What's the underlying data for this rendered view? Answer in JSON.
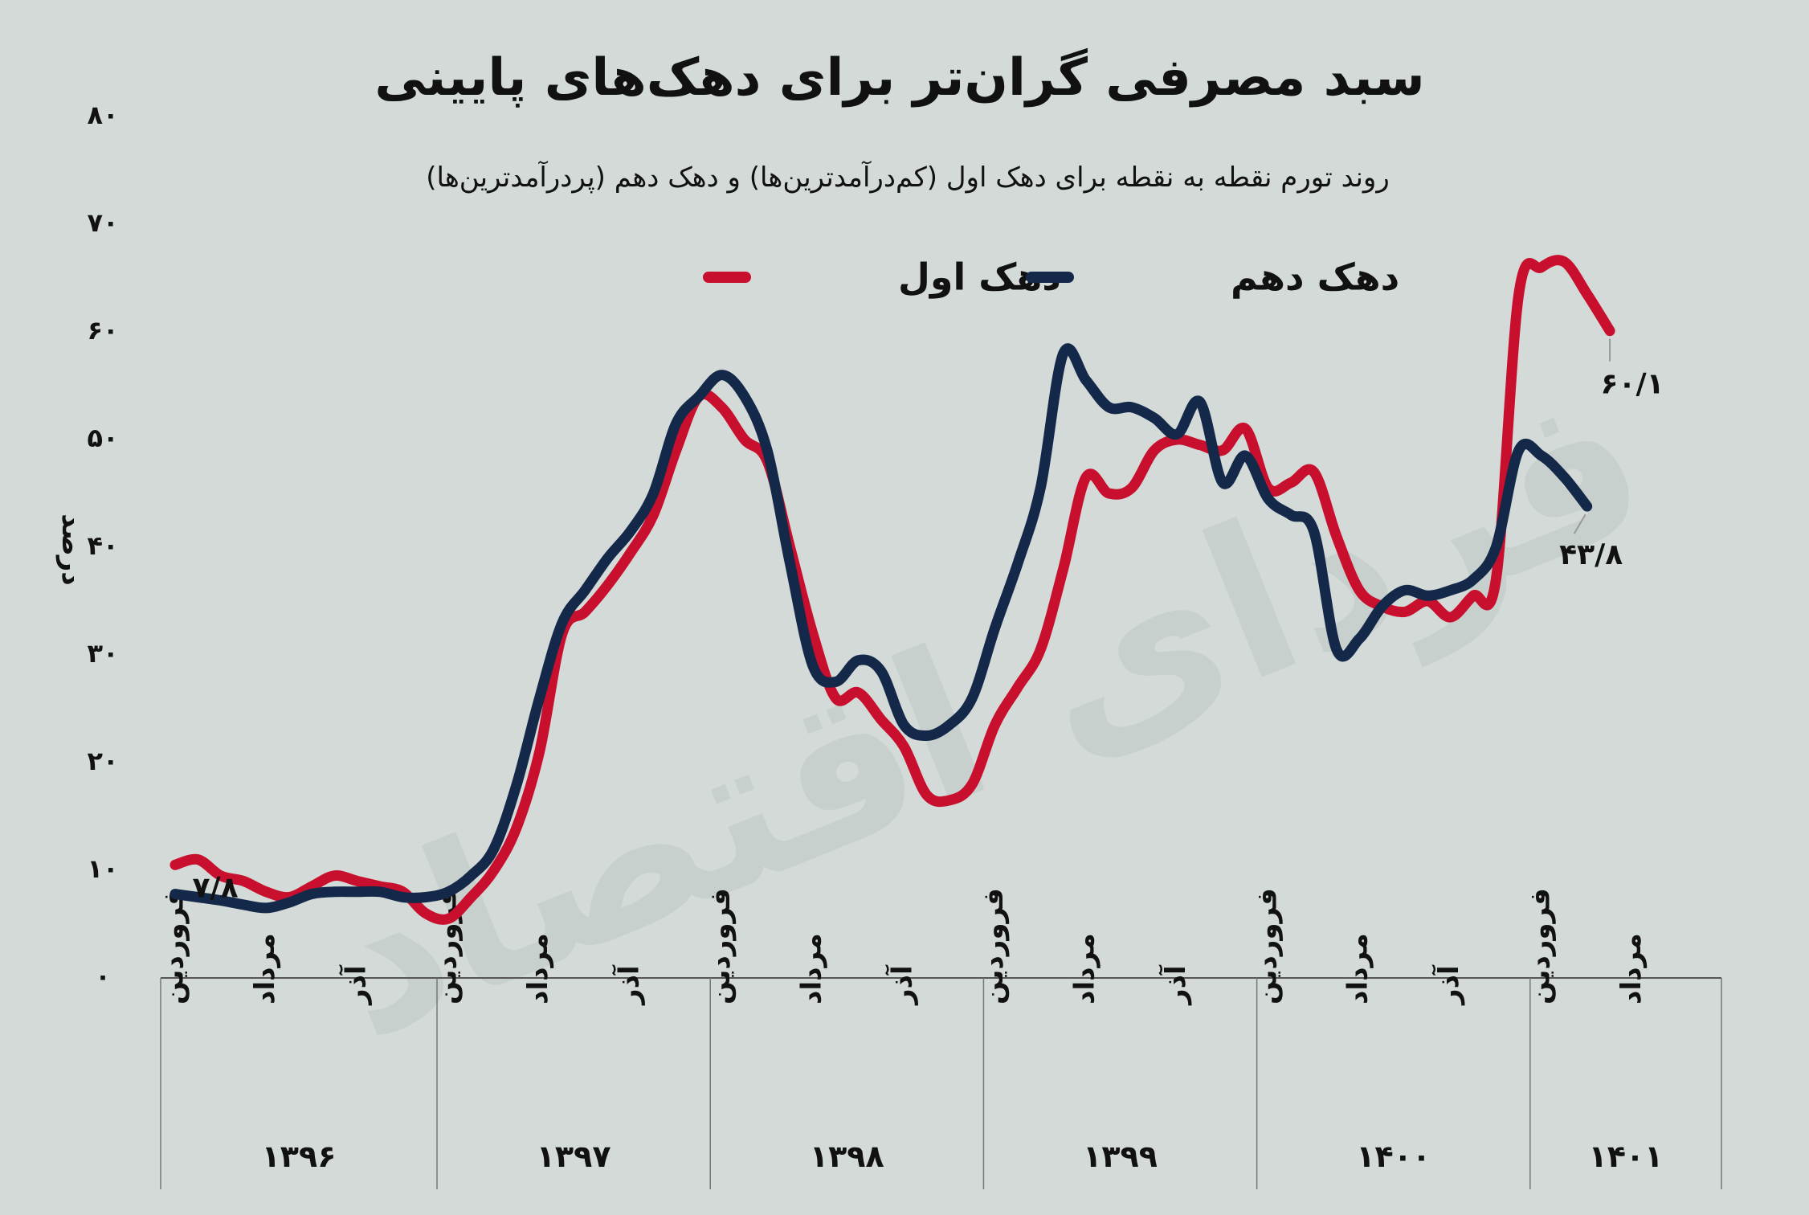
{
  "chart_data": {
    "type": "line",
    "title": "سبد مصرفی گران‌تر برای دهک‌های پایینی",
    "subtitle": "روند تورم نقطه به نقطه برای دهک اول (کم‌درآمدترین‌ها) و دهک دهم (پردرآمدترین‌ها)",
    "ylabel": "درصد",
    "ylim": [
      0,
      80
    ],
    "yticks": [
      {
        "v": 0,
        "label": "۰"
      },
      {
        "v": 10,
        "label": "۱۰"
      },
      {
        "v": 20,
        "label": "۲۰"
      },
      {
        "v": 30,
        "label": "۳۰"
      },
      {
        "v": 40,
        "label": "۴۰"
      },
      {
        "v": 50,
        "label": "۵۰"
      },
      {
        "v": 60,
        "label": "۶۰"
      },
      {
        "v": 70,
        "label": "۷۰"
      },
      {
        "v": 80,
        "label": "۸۰"
      }
    ],
    "xticks": [
      {
        "i": 0,
        "label": "فروردین"
      },
      {
        "i": 4,
        "label": "مرداد"
      },
      {
        "i": 8,
        "label": "آذر"
      },
      {
        "i": 12,
        "label": "فروردین"
      },
      {
        "i": 16,
        "label": "مرداد"
      },
      {
        "i": 20,
        "label": "آذر"
      },
      {
        "i": 24,
        "label": "فروردین"
      },
      {
        "i": 28,
        "label": "مرداد"
      },
      {
        "i": 32,
        "label": "آذر"
      },
      {
        "i": 36,
        "label": "فروردین"
      },
      {
        "i": 40,
        "label": "مرداد"
      },
      {
        "i": 44,
        "label": "آذر"
      },
      {
        "i": 48,
        "label": "فروردین"
      },
      {
        "i": 52,
        "label": "مرداد"
      },
      {
        "i": 56,
        "label": "آذر"
      },
      {
        "i": 60,
        "label": "فروردین"
      },
      {
        "i": 64,
        "label": "مرداد"
      }
    ],
    "years": [
      {
        "start": 0,
        "end": 12,
        "label": "۱۳۹۶"
      },
      {
        "start": 12,
        "end": 24,
        "label": "۱۳۹۷"
      },
      {
        "start": 24,
        "end": 36,
        "label": "۱۳۹۸"
      },
      {
        "start": 36,
        "end": 48,
        "label": "۱۳۹۹"
      },
      {
        "start": 48,
        "end": 60,
        "label": "۱۴۰۰"
      },
      {
        "start": 60,
        "end": 65,
        "label": "۱۴۰۱"
      }
    ],
    "legend_position": "top",
    "series": [
      {
        "name": "دهک اول",
        "color": "#c8102e",
        "values": [
          10.5,
          11,
          9.5,
          9,
          8,
          7.5,
          8.5,
          9.5,
          9,
          8.5,
          8,
          6,
          5.5,
          7.5,
          10,
          14,
          21,
          32,
          34,
          36.5,
          39.5,
          43,
          49,
          54,
          53,
          50,
          48,
          40,
          32,
          26,
          26.5,
          24,
          21.5,
          17,
          16.5,
          18,
          23.5,
          27,
          30.5,
          38,
          46.5,
          45,
          45.5,
          49,
          50,
          49.5,
          49,
          51,
          45.5,
          46,
          47,
          41,
          36,
          34.5,
          34,
          35,
          33.5,
          35.5,
          37,
          63.5,
          66,
          66.5,
          63.5,
          60.1
        ]
      },
      {
        "name": "دهک دهم",
        "color": "#14294a",
        "values": [
          7.8,
          7.5,
          7.2,
          6.8,
          6.5,
          7,
          7.8,
          8,
          8,
          8,
          7.5,
          7.5,
          8,
          9.5,
          12,
          18,
          26,
          33,
          36,
          39,
          41.5,
          45,
          51.5,
          54,
          56,
          54,
          49,
          38.5,
          29,
          27.5,
          29.5,
          28.5,
          23.5,
          22.5,
          23.5,
          26,
          32.5,
          38.5,
          45.5,
          58,
          55.5,
          53,
          53,
          52,
          50.5,
          53.5,
          46,
          48.5,
          44.5,
          43,
          41.5,
          30.5,
          31.5,
          34.5,
          36,
          35.5,
          36,
          37,
          40,
          49,
          48.5,
          46.5,
          43.8
        ]
      }
    ],
    "annotations": [
      {
        "text": "۷/۸",
        "series": 1,
        "i": 0
      },
      {
        "text": "۶۰/۱",
        "series": 0,
        "i": 63
      },
      {
        "text": "۴۳/۸",
        "series": 1,
        "i": 62
      }
    ],
    "watermark": "فرداى اقتصاد"
  }
}
